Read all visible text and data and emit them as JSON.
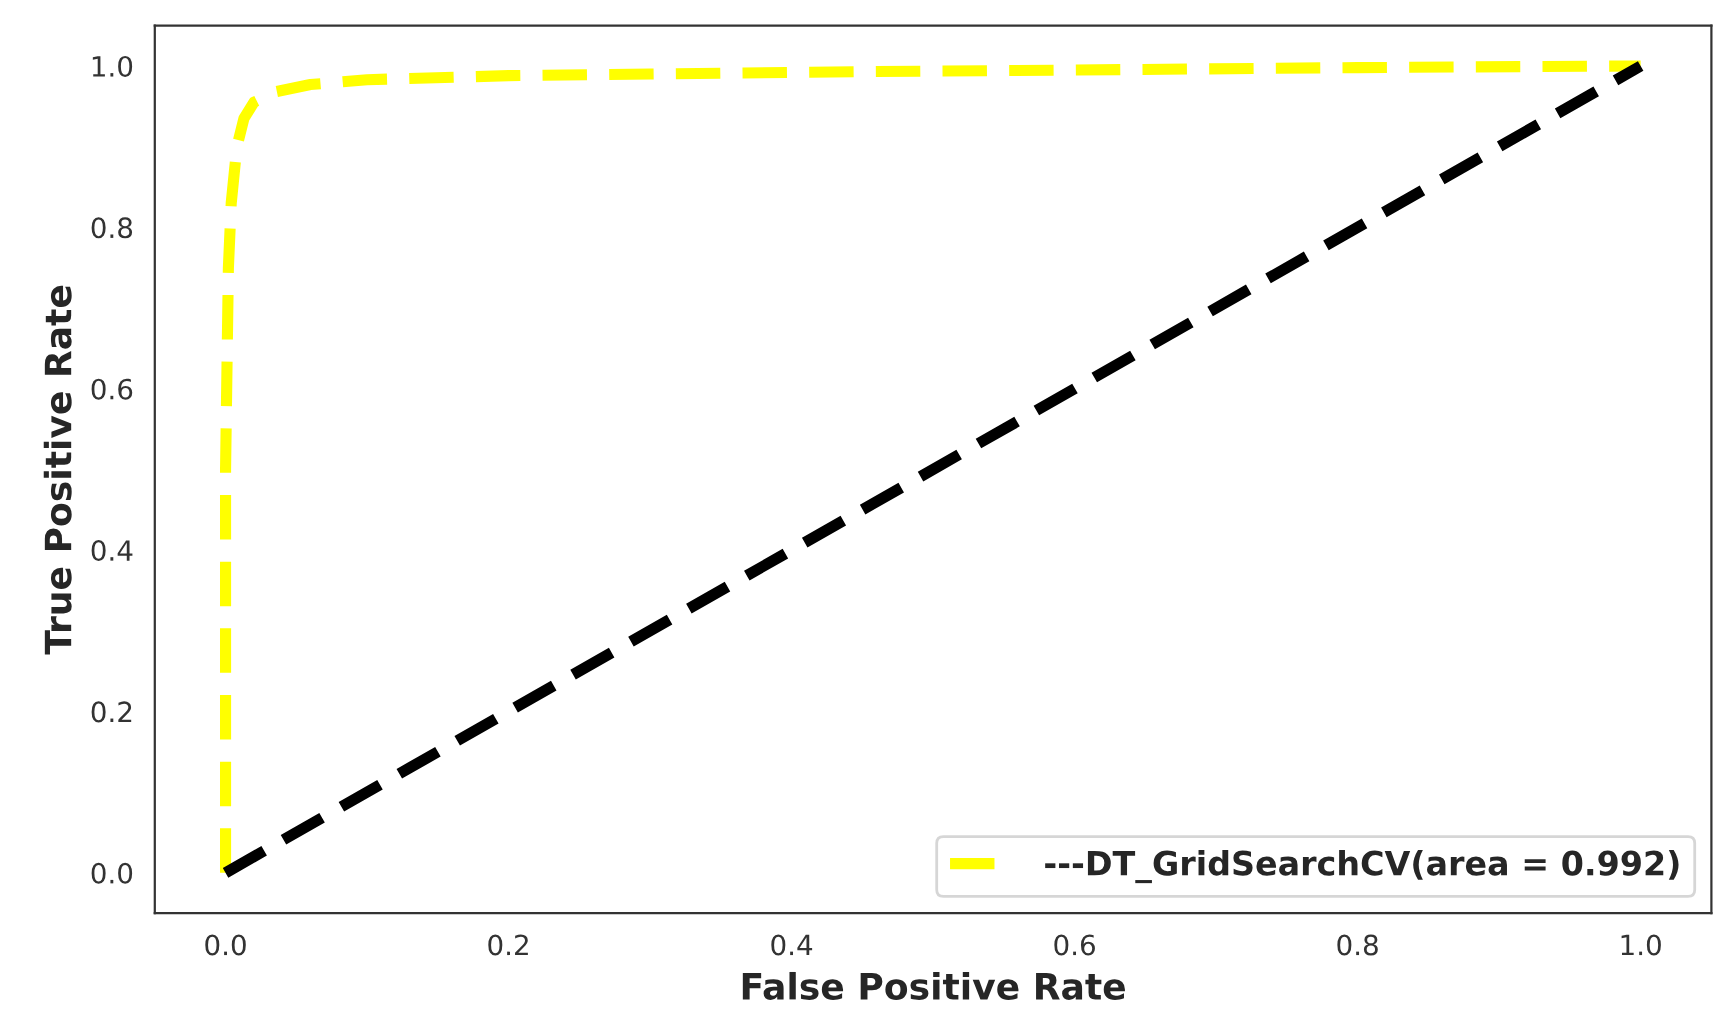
{
  "chart_data": {
    "type": "line",
    "xlabel": "False Positive Rate",
    "ylabel": "True Positive Rate",
    "series": [
      {
        "name": "---DT_GridSearchCV(area = 0.992)",
        "color": "#ffff00",
        "x": [
          0,
          0,
          0.002,
          0.004,
          0.008,
          0.013,
          0.02,
          0.035,
          0.06,
          0.1,
          0.2,
          0.3,
          0.45,
          0.6,
          0.8,
          1.0
        ],
        "values": [
          0,
          0.5,
          0.75,
          0.83,
          0.9,
          0.935,
          0.955,
          0.968,
          0.977,
          0.983,
          0.988,
          0.99,
          0.993,
          0.995,
          0.998,
          1.0
        ]
      },
      {
        "color": "#000000",
        "x": [
          0,
          1
        ],
        "values": [
          0,
          1
        ]
      }
    ],
    "xlim": [
      -0.05,
      1.05
    ],
    "ylim": [
      -0.05,
      1.05
    ],
    "xticks": [
      {
        "value": 0,
        "label": "0.0"
      },
      0.2,
      0.4,
      0.6,
      0.8,
      {
        "value": 1,
        "label": "1.0"
      }
    ],
    "yticks": [
      {
        "value": 0,
        "label": "0.0"
      },
      0.2,
      0.4,
      0.6,
      0.8,
      {
        "value": 1,
        "label": "1.0"
      }
    ],
    "grid": false,
    "legend": "bottom right",
    "line_style": "dashed",
    "marker": "none"
  }
}
